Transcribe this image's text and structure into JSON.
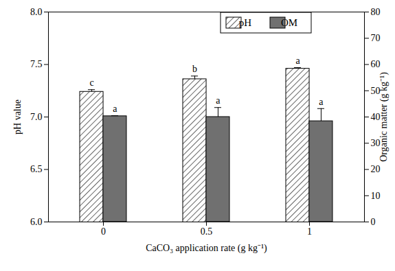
{
  "chart_data": {
    "type": "bar",
    "categories": [
      "0",
      "0.5",
      "1"
    ],
    "xlabel": "CaCO₃ application rate (g kg⁻¹)",
    "ylabel": "pH value",
    "y2label": "Organic matter (g kg⁻¹)",
    "ylim": [
      6,
      8
    ],
    "yticks": [
      {
        "value": 6,
        "label": "6.0"
      },
      {
        "value": 6.5,
        "label": "6.5"
      },
      {
        "value": 7,
        "label": "7.0"
      },
      {
        "value": 7.5,
        "label": "7.5"
      },
      {
        "value": 8,
        "label": "8.0"
      }
    ],
    "y2lim": [
      0,
      80
    ],
    "y2ticks": [
      0,
      10,
      20,
      30,
      40,
      50,
      60,
      70,
      80
    ],
    "legend": "upper right",
    "series": [
      {
        "name": "pH",
        "color": "#000000",
        "values": [
          7.24,
          7.36,
          7.46
        ],
        "error": [
          0.02,
          0.03,
          0.01
        ],
        "letters": [
          "c",
          "b",
          "a"
        ]
      },
      {
        "name": "OM",
        "color": "#707070",
        "axis": "y2",
        "values": [
          40.3,
          40.0,
          38.4
        ],
        "error": [
          0.2,
          3.6,
          4.8
        ],
        "letters": [
          "a",
          "a",
          "a"
        ]
      }
    ]
  }
}
